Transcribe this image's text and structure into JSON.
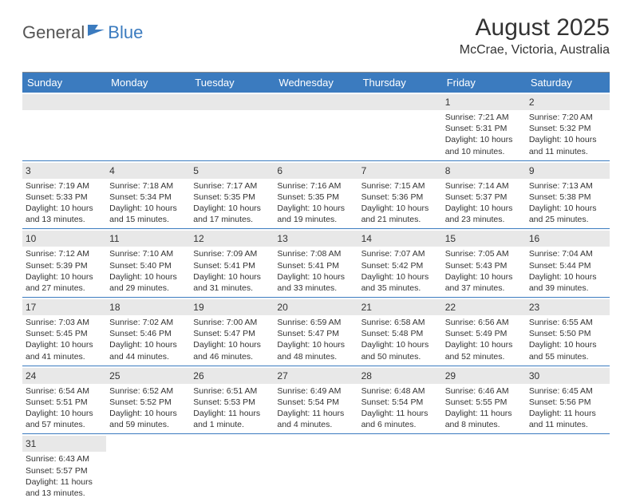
{
  "brand": {
    "part1": "General",
    "part2": "Blue"
  },
  "title": "August 2025",
  "location": "McCrae, Victoria, Australia",
  "day_headers": [
    "Sunday",
    "Monday",
    "Tuesday",
    "Wednesday",
    "Thursday",
    "Friday",
    "Saturday"
  ],
  "colors": {
    "header_bg": "#3b7bbf",
    "header_text": "#ffffff",
    "daynum_bg": "#e8e8e8",
    "border": "#3b7bbf",
    "text": "#333333"
  },
  "weeks": [
    [
      null,
      null,
      null,
      null,
      null,
      {
        "n": "1",
        "sr": "Sunrise: 7:21 AM",
        "ss": "Sunset: 5:31 PM",
        "dl": "Daylight: 10 hours and 10 minutes."
      },
      {
        "n": "2",
        "sr": "Sunrise: 7:20 AM",
        "ss": "Sunset: 5:32 PM",
        "dl": "Daylight: 10 hours and 11 minutes."
      }
    ],
    [
      {
        "n": "3",
        "sr": "Sunrise: 7:19 AM",
        "ss": "Sunset: 5:33 PM",
        "dl": "Daylight: 10 hours and 13 minutes."
      },
      {
        "n": "4",
        "sr": "Sunrise: 7:18 AM",
        "ss": "Sunset: 5:34 PM",
        "dl": "Daylight: 10 hours and 15 minutes."
      },
      {
        "n": "5",
        "sr": "Sunrise: 7:17 AM",
        "ss": "Sunset: 5:35 PM",
        "dl": "Daylight: 10 hours and 17 minutes."
      },
      {
        "n": "6",
        "sr": "Sunrise: 7:16 AM",
        "ss": "Sunset: 5:35 PM",
        "dl": "Daylight: 10 hours and 19 minutes."
      },
      {
        "n": "7",
        "sr": "Sunrise: 7:15 AM",
        "ss": "Sunset: 5:36 PM",
        "dl": "Daylight: 10 hours and 21 minutes."
      },
      {
        "n": "8",
        "sr": "Sunrise: 7:14 AM",
        "ss": "Sunset: 5:37 PM",
        "dl": "Daylight: 10 hours and 23 minutes."
      },
      {
        "n": "9",
        "sr": "Sunrise: 7:13 AM",
        "ss": "Sunset: 5:38 PM",
        "dl": "Daylight: 10 hours and 25 minutes."
      }
    ],
    [
      {
        "n": "10",
        "sr": "Sunrise: 7:12 AM",
        "ss": "Sunset: 5:39 PM",
        "dl": "Daylight: 10 hours and 27 minutes."
      },
      {
        "n": "11",
        "sr": "Sunrise: 7:10 AM",
        "ss": "Sunset: 5:40 PM",
        "dl": "Daylight: 10 hours and 29 minutes."
      },
      {
        "n": "12",
        "sr": "Sunrise: 7:09 AM",
        "ss": "Sunset: 5:41 PM",
        "dl": "Daylight: 10 hours and 31 minutes."
      },
      {
        "n": "13",
        "sr": "Sunrise: 7:08 AM",
        "ss": "Sunset: 5:41 PM",
        "dl": "Daylight: 10 hours and 33 minutes."
      },
      {
        "n": "14",
        "sr": "Sunrise: 7:07 AM",
        "ss": "Sunset: 5:42 PM",
        "dl": "Daylight: 10 hours and 35 minutes."
      },
      {
        "n": "15",
        "sr": "Sunrise: 7:05 AM",
        "ss": "Sunset: 5:43 PM",
        "dl": "Daylight: 10 hours and 37 minutes."
      },
      {
        "n": "16",
        "sr": "Sunrise: 7:04 AM",
        "ss": "Sunset: 5:44 PM",
        "dl": "Daylight: 10 hours and 39 minutes."
      }
    ],
    [
      {
        "n": "17",
        "sr": "Sunrise: 7:03 AM",
        "ss": "Sunset: 5:45 PM",
        "dl": "Daylight: 10 hours and 41 minutes."
      },
      {
        "n": "18",
        "sr": "Sunrise: 7:02 AM",
        "ss": "Sunset: 5:46 PM",
        "dl": "Daylight: 10 hours and 44 minutes."
      },
      {
        "n": "19",
        "sr": "Sunrise: 7:00 AM",
        "ss": "Sunset: 5:47 PM",
        "dl": "Daylight: 10 hours and 46 minutes."
      },
      {
        "n": "20",
        "sr": "Sunrise: 6:59 AM",
        "ss": "Sunset: 5:47 PM",
        "dl": "Daylight: 10 hours and 48 minutes."
      },
      {
        "n": "21",
        "sr": "Sunrise: 6:58 AM",
        "ss": "Sunset: 5:48 PM",
        "dl": "Daylight: 10 hours and 50 minutes."
      },
      {
        "n": "22",
        "sr": "Sunrise: 6:56 AM",
        "ss": "Sunset: 5:49 PM",
        "dl": "Daylight: 10 hours and 52 minutes."
      },
      {
        "n": "23",
        "sr": "Sunrise: 6:55 AM",
        "ss": "Sunset: 5:50 PM",
        "dl": "Daylight: 10 hours and 55 minutes."
      }
    ],
    [
      {
        "n": "24",
        "sr": "Sunrise: 6:54 AM",
        "ss": "Sunset: 5:51 PM",
        "dl": "Daylight: 10 hours and 57 minutes."
      },
      {
        "n": "25",
        "sr": "Sunrise: 6:52 AM",
        "ss": "Sunset: 5:52 PM",
        "dl": "Daylight: 10 hours and 59 minutes."
      },
      {
        "n": "26",
        "sr": "Sunrise: 6:51 AM",
        "ss": "Sunset: 5:53 PM",
        "dl": "Daylight: 11 hours and 1 minute."
      },
      {
        "n": "27",
        "sr": "Sunrise: 6:49 AM",
        "ss": "Sunset: 5:54 PM",
        "dl": "Daylight: 11 hours and 4 minutes."
      },
      {
        "n": "28",
        "sr": "Sunrise: 6:48 AM",
        "ss": "Sunset: 5:54 PM",
        "dl": "Daylight: 11 hours and 6 minutes."
      },
      {
        "n": "29",
        "sr": "Sunrise: 6:46 AM",
        "ss": "Sunset: 5:55 PM",
        "dl": "Daylight: 11 hours and 8 minutes."
      },
      {
        "n": "30",
        "sr": "Sunrise: 6:45 AM",
        "ss": "Sunset: 5:56 PM",
        "dl": "Daylight: 11 hours and 11 minutes."
      }
    ],
    [
      {
        "n": "31",
        "sr": "Sunrise: 6:43 AM",
        "ss": "Sunset: 5:57 PM",
        "dl": "Daylight: 11 hours and 13 minutes."
      },
      null,
      null,
      null,
      null,
      null,
      null
    ]
  ]
}
